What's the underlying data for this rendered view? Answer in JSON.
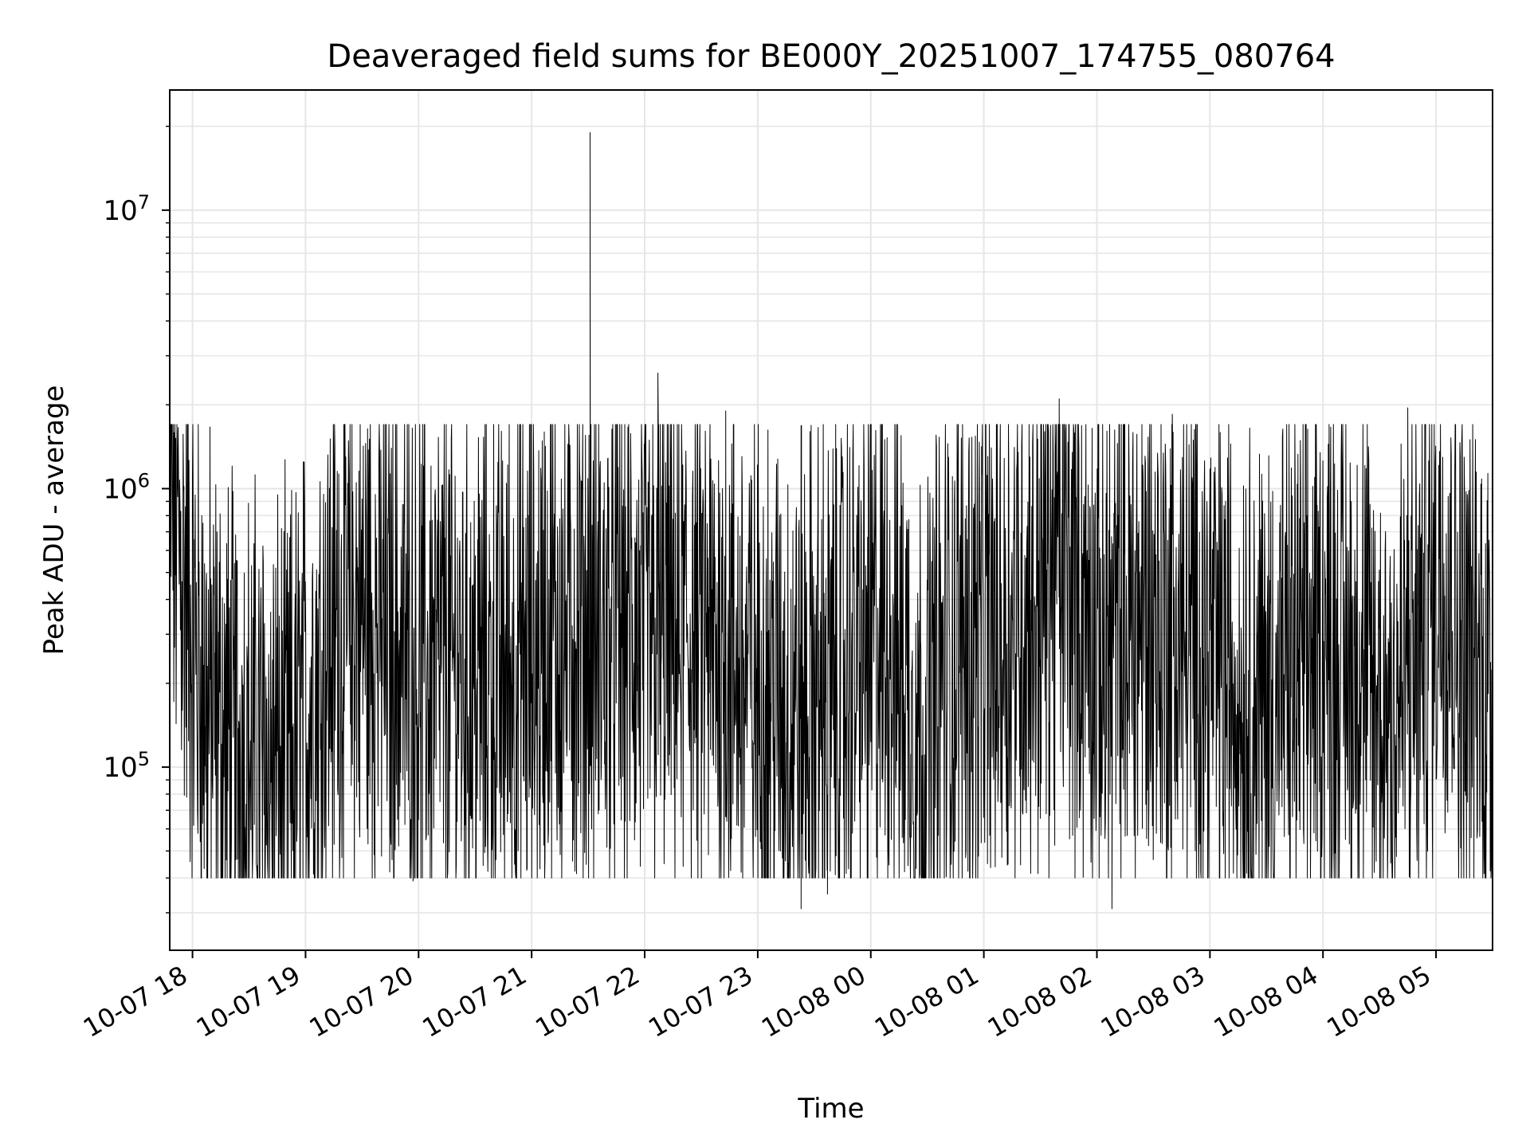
{
  "chart_data": {
    "type": "line",
    "title": "Deaveraged field sums for BE000Y_20251007_174755_080764",
    "xlabel": "Time",
    "ylabel": "Peak ADU - average",
    "x_range": [
      "2025-10-07 17:47:55",
      "2025-10-08 05:30:00"
    ],
    "y_scale": "log",
    "ylim": [
      22000,
      27000000
    ],
    "grid": true,
    "line_color": "#000000",
    "grid_color": "#e6e6e6",
    "x_ticks": [
      {
        "value": "2025-10-07 18:00",
        "label": "10-07 18"
      },
      {
        "value": "2025-10-07 19:00",
        "label": "10-07 19"
      },
      {
        "value": "2025-10-07 20:00",
        "label": "10-07 20"
      },
      {
        "value": "2025-10-07 21:00",
        "label": "10-07 21"
      },
      {
        "value": "2025-10-07 22:00",
        "label": "10-07 22"
      },
      {
        "value": "2025-10-07 23:00",
        "label": "10-07 23"
      },
      {
        "value": "2025-10-08 00:00",
        "label": "10-08 00"
      },
      {
        "value": "2025-10-08 01:00",
        "label": "10-08 01"
      },
      {
        "value": "2025-10-08 02:00",
        "label": "10-08 02"
      },
      {
        "value": "2025-10-08 03:00",
        "label": "10-08 03"
      },
      {
        "value": "2025-10-08 04:00",
        "label": "10-08 04"
      },
      {
        "value": "2025-10-08 05:00",
        "label": "10-08 05"
      }
    ],
    "y_ticks": [
      {
        "value": 100000,
        "base": "10",
        "exp": "5"
      },
      {
        "value": 1000000,
        "base": "10",
        "exp": "6"
      },
      {
        "value": 10000000,
        "base": "10",
        "exp": "7"
      }
    ],
    "series": [
      {
        "x": [
          "2025-10-07 17:48",
          "2025-10-07 17:55",
          "2025-10-07 18:00",
          "2025-10-07 18:05",
          "2025-10-07 18:10",
          "2025-10-07 18:20",
          "2025-10-07 18:30",
          "2025-10-07 18:40",
          "2025-10-07 18:45",
          "2025-10-07 18:50",
          "2025-10-07 18:57",
          "2025-10-07 19:10",
          "2025-10-07 19:15",
          "2025-10-07 19:20",
          "2025-10-07 19:30",
          "2025-10-07 19:40",
          "2025-10-07 19:50",
          "2025-10-07 19:58",
          "2025-10-07 20:10",
          "2025-10-07 20:20",
          "2025-10-07 20:30",
          "2025-10-07 20:40",
          "2025-10-07 20:50",
          "2025-10-07 21:00",
          "2025-10-07 21:10",
          "2025-10-07 21:20",
          "2025-10-07 21:31",
          "2025-10-07 21:40",
          "2025-10-07 21:50",
          "2025-10-07 22:00",
          "2025-10-07 22:08",
          "2025-10-07 22:20",
          "2025-10-07 22:30",
          "2025-10-07 22:36",
          "2025-10-07 22:45",
          "2025-10-07 22:55",
          "2025-10-07 23:05",
          "2025-10-07 23:20",
          "2025-10-07 23:30",
          "2025-10-07 23:40",
          "2025-10-07 23:50",
          "2025-10-08 00:10",
          "2025-10-08 00:20",
          "2025-10-08 00:25",
          "2025-10-08 00:30",
          "2025-10-08 00:40",
          "2025-10-08 00:50",
          "2025-10-08 01:00",
          "2025-10-08 01:15",
          "2025-10-08 01:30",
          "2025-10-08 01:40",
          "2025-10-08 01:45",
          "2025-10-08 01:55",
          "2025-10-08 02:00",
          "2025-10-08 02:10",
          "2025-10-08 02:20",
          "2025-10-08 02:30",
          "2025-10-08 02:40",
          "2025-10-08 02:50",
          "2025-10-08 03:00",
          "2025-10-08 03:10",
          "2025-10-08 03:20",
          "2025-10-08 03:30",
          "2025-10-08 03:40",
          "2025-10-08 03:50",
          "2025-10-08 04:00",
          "2025-10-08 04:10",
          "2025-10-08 04:20",
          "2025-10-08 04:30",
          "2025-10-08 04:40",
          "2025-10-08 04:50",
          "2025-10-08 05:00",
          "2025-10-08 05:05",
          "2025-10-08 05:15",
          "2025-10-08 05:25",
          "2025-10-08 05:30"
        ],
        "values": [
          1000000,
          500000,
          300000,
          200000,
          150000,
          120000,
          110000,
          100000,
          95000,
          90000,
          130000,
          250000,
          300000,
          320000,
          350000,
          310000,
          260000,
          220000,
          230000,
          220000,
          200000,
          210000,
          220000,
          230000,
          290000,
          310000,
          300000,
          280000,
          300000,
          270000,
          300000,
          290000,
          280000,
          260000,
          240000,
          210000,
          180000,
          160000,
          170000,
          190000,
          220000,
          300000,
          200000,
          120000,
          130000,
          220000,
          280000,
          280000,
          320000,
          420000,
          550000,
          480000,
          360000,
          250000,
          280000,
          340000,
          340000,
          300000,
          280000,
          260000,
          210000,
          180000,
          170000,
          190000,
          230000,
          280000,
          260000,
          230000,
          160000,
          180000,
          250000,
          450000,
          580000,
          250000,
          230000,
          180000
        ],
        "spikes": [
          {
            "x": "2025-10-07 21:31",
            "value": 19000000
          },
          {
            "x": "2025-10-07 22:07",
            "value": 2600000
          },
          {
            "x": "2025-10-07 22:43",
            "value": 1900000
          },
          {
            "x": "2025-10-08 01:40",
            "value": 2100000
          },
          {
            "x": "2025-10-08 02:40",
            "value": 1850000
          },
          {
            "x": "2025-10-08 04:45",
            "value": 1950000
          },
          {
            "x": "2025-10-07 19:57",
            "value": 39000
          },
          {
            "x": "2025-10-07 23:23",
            "value": 31000
          },
          {
            "x": "2025-10-08 02:08",
            "value": 31000
          },
          {
            "x": "2025-10-07 23:37",
            "value": 35000
          }
        ]
      }
    ]
  }
}
